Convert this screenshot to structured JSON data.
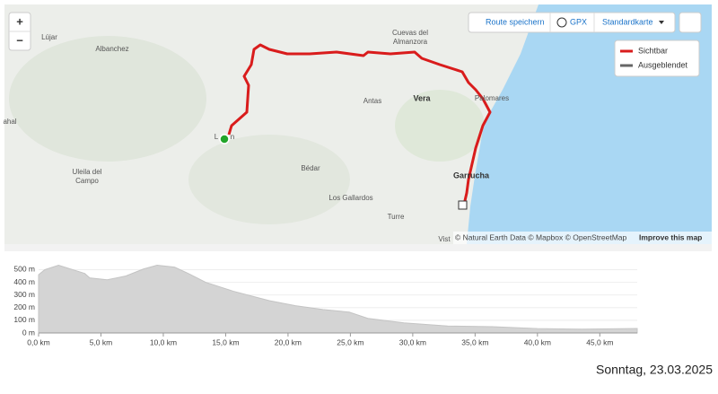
{
  "controls": {
    "zoom_in": "+",
    "zoom_out": "−",
    "save_route": "Route speichern",
    "gpx": "GPX",
    "map_style": "Standardkarte"
  },
  "legend": {
    "visible": "Sichtbar",
    "hidden": "Ausgeblendet"
  },
  "map": {
    "labels": [
      "Lújar",
      "Albanchez",
      "Cuevas del",
      "Almanzora",
      "Antas",
      "Vera",
      "Palomares",
      "Garrucha",
      "Uleila del",
      "Campo",
      "Bédar",
      "Los Gallardos",
      "Turre",
      "Vist",
      "L",
      "n",
      "ahal"
    ],
    "attribution": "© Natural Earth Data © Mapbox © OpenStreetMap",
    "improve": "Improve this map"
  },
  "chart_data": {
    "type": "area",
    "color": "#d4d4d4",
    "grid": true,
    "x": [
      0,
      0.5,
      1.6,
      3.7,
      4.1,
      5.5,
      7.0,
      8.4,
      9.5,
      10.9,
      12.0,
      13.4,
      15.6,
      18.5,
      20.6,
      22.8,
      24.9,
      26.4,
      29.3,
      32.8,
      36.4,
      40.0,
      43.6,
      48.0
    ],
    "values": [
      460,
      500,
      535,
      470,
      435,
      420,
      450,
      505,
      535,
      520,
      470,
      400,
      330,
      255,
      215,
      185,
      165,
      115,
      80,
      55,
      50,
      35,
      30,
      35
    ],
    "xlim": [
      0,
      48
    ],
    "ylim": [
      0,
      560
    ],
    "xticks": [
      {
        "value": 0,
        "label": "0,0 km"
      },
      {
        "value": 5,
        "label": "5,0 km"
      },
      {
        "value": 10,
        "label": "10,0 km"
      },
      {
        "value": 15,
        "label": "15,0 km"
      },
      {
        "value": 20,
        "label": "20,0 km"
      },
      {
        "value": 25,
        "label": "25,0 km"
      },
      {
        "value": 30,
        "label": "30,0 km"
      },
      {
        "value": 35,
        "label": "35,0 km"
      },
      {
        "value": 40,
        "label": "40,0 km"
      },
      {
        "value": 45,
        "label": "45,0 km"
      }
    ],
    "yticks": [
      {
        "value": 0,
        "label": "0 m"
      },
      {
        "value": 100,
        "label": "100 m"
      },
      {
        "value": 200,
        "label": "200 m"
      },
      {
        "value": 300,
        "label": "300 m"
      },
      {
        "value": 400,
        "label": "400 m"
      },
      {
        "value": 500,
        "label": "500 m"
      }
    ]
  },
  "date": "Sonntag, 23.03.2025"
}
